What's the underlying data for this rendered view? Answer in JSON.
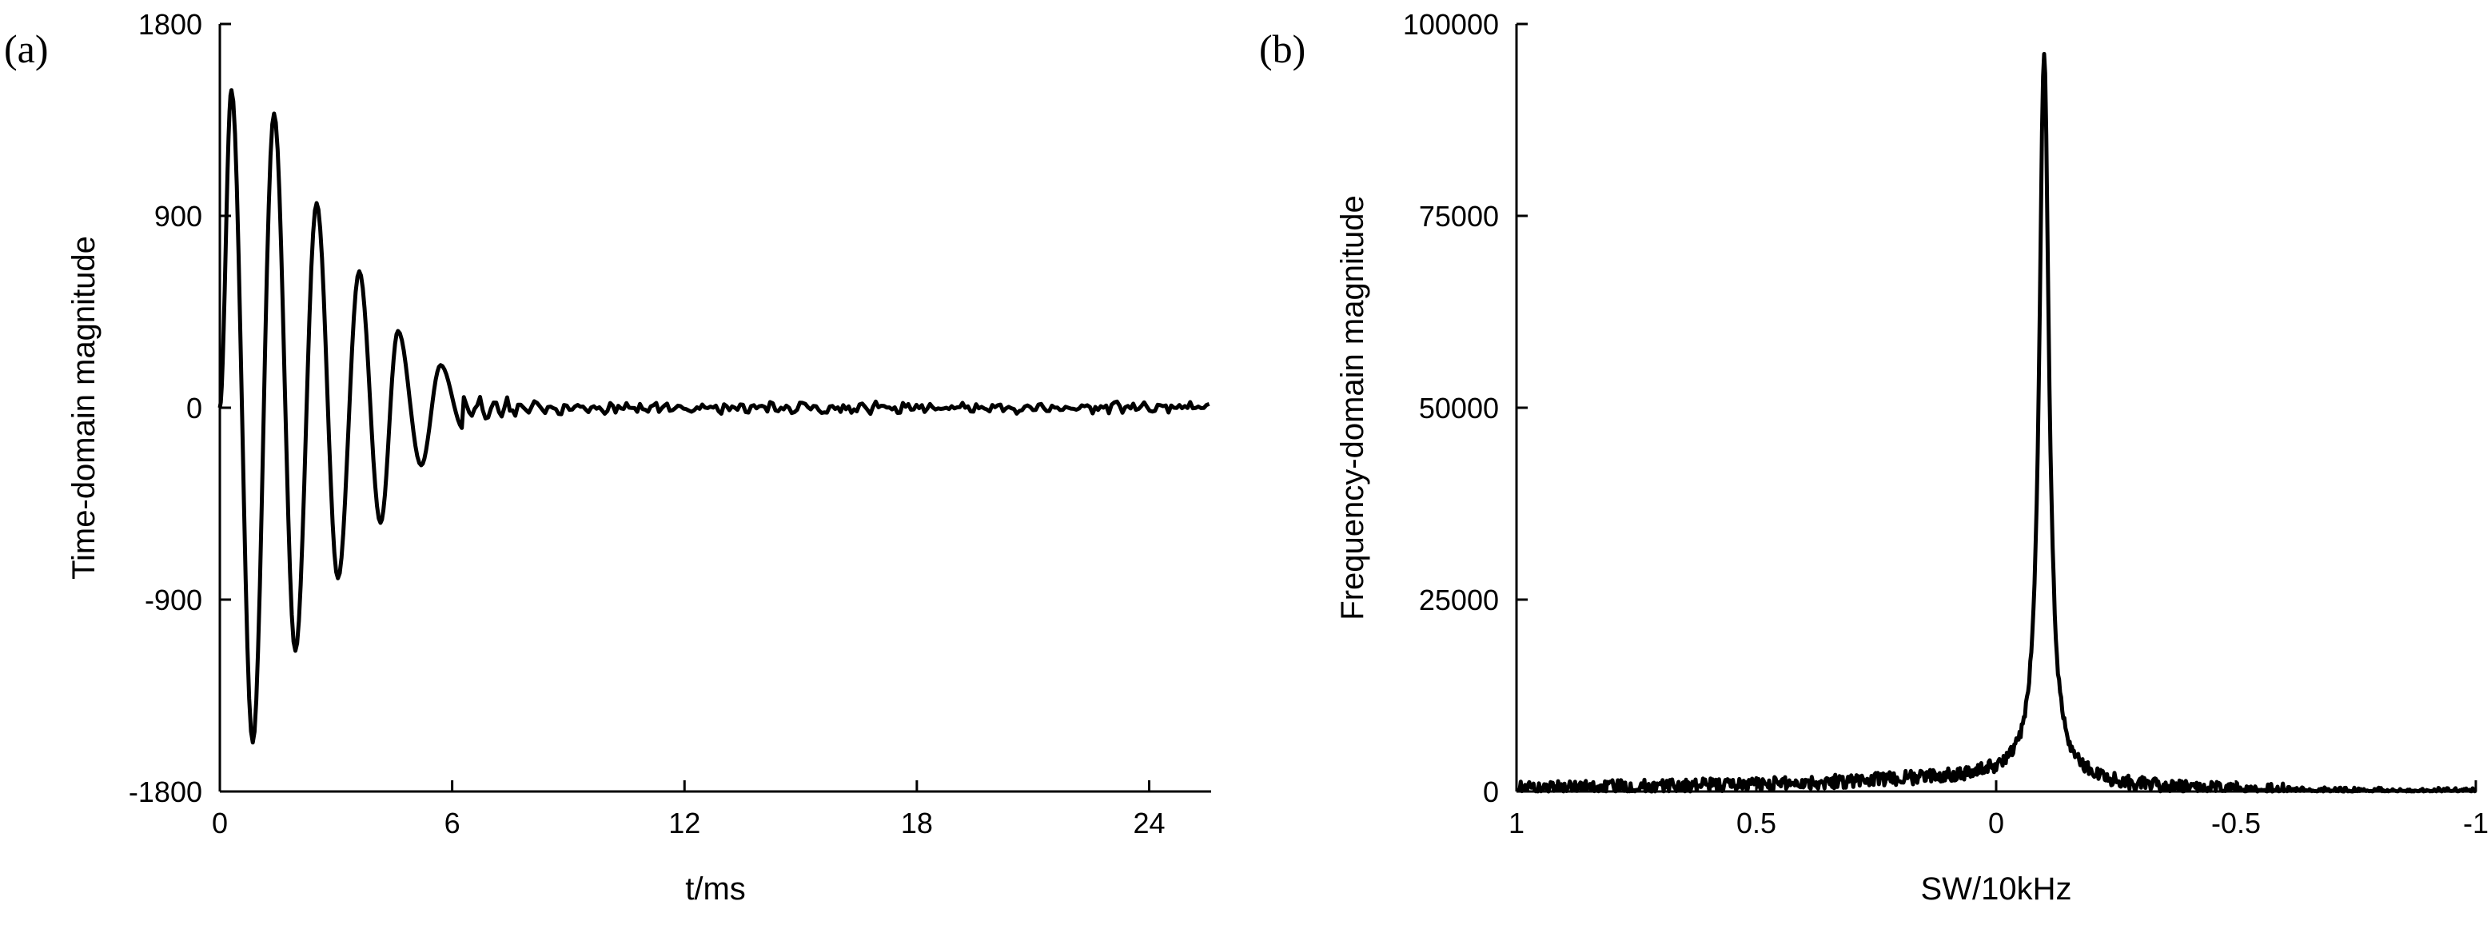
{
  "chart_data": [
    {
      "panel_label": "(a)",
      "type": "line",
      "xlabel": "t/ms",
      "ylabel": "Time-domain magnitude",
      "xlim": [
        0,
        25.6
      ],
      "ylim": [
        -1800,
        1800
      ],
      "xticks": [
        0,
        6,
        12,
        18,
        24
      ],
      "yticks": [
        -1800,
        -900,
        0,
        900,
        1800
      ],
      "signal": {
        "description_type": "decaying oscillation (FID) with noise",
        "peaks": [
          [
            0.3,
            1490
          ],
          [
            1.4,
            1380
          ],
          [
            2.5,
            960
          ],
          [
            3.6,
            640
          ],
          [
            4.6,
            360
          ],
          [
            5.7,
            200
          ]
        ],
        "troughs": [
          [
            0.85,
            -1570
          ],
          [
            1.95,
            -1140
          ],
          [
            3.05,
            -800
          ],
          [
            4.15,
            -540
          ],
          [
            5.2,
            -270
          ],
          [
            6.3,
            -100
          ]
        ],
        "noise_level": 40
      },
      "grid": false,
      "legend": "none"
    },
    {
      "panel_label": "(b)",
      "type": "line",
      "xlabel": "SW/10kHz",
      "ylabel": "Frequency-domain magnitude",
      "xlim": [
        1,
        -1
      ],
      "ylim": [
        0,
        100000
      ],
      "xticks": [
        1,
        0.5,
        0,
        -0.5,
        -1
      ],
      "xtick_labels": [
        "1",
        "0.5",
        "0",
        "-0.5",
        "-1"
      ],
      "yticks": [
        0,
        25000,
        50000,
        75000,
        100000
      ],
      "signal": {
        "description_type": "Lorentzian peak with noise",
        "peak_x": -0.1,
        "peak_y": 94000,
        "half_width": 0.012,
        "baseline": 0,
        "noise_level": 900
      },
      "grid": false,
      "legend": "none"
    }
  ]
}
